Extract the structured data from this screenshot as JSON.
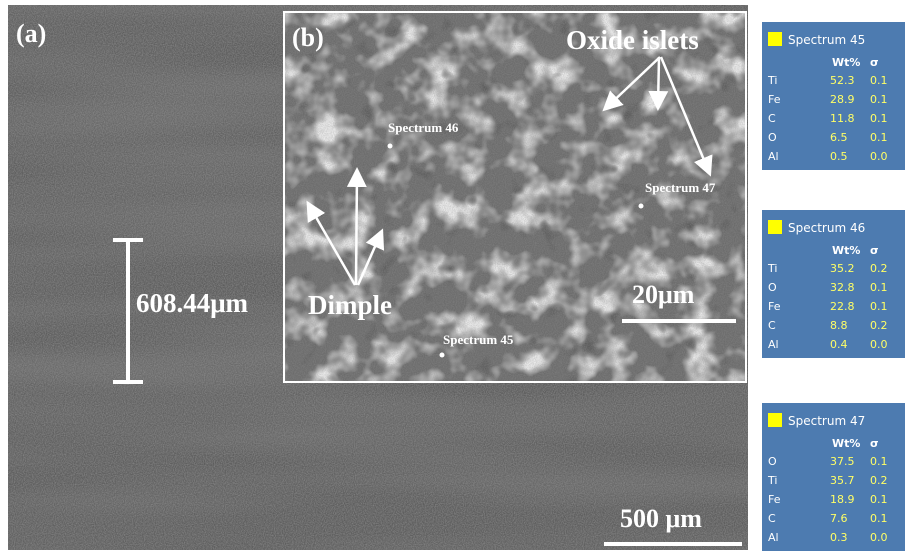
{
  "panel_a": {
    "label": "(a)",
    "measurement": "608.44μm",
    "scale_bar": "500 μm"
  },
  "panel_b": {
    "label": "(b)",
    "scale_bar": "20μm",
    "annotations": {
      "oxide": "Oxide islets",
      "dimple": "Dimple"
    },
    "points": [
      "Spectrum 46",
      "Spectrum 47",
      "Spectrum 45"
    ]
  },
  "spectra": [
    {
      "title": "Spectrum 45",
      "headers": [
        "Wt%",
        "σ"
      ],
      "rows": [
        [
          "Ti",
          "52.3",
          "0.1"
        ],
        [
          "Fe",
          "28.9",
          "0.1"
        ],
        [
          "C",
          "11.8",
          "0.1"
        ],
        [
          "O",
          "6.5",
          "0.1"
        ],
        [
          "Al",
          "0.5",
          "0.0"
        ]
      ]
    },
    {
      "title": "Spectrum 46",
      "headers": [
        "Wt%",
        "σ"
      ],
      "rows": [
        [
          "Ti",
          "35.2",
          "0.2"
        ],
        [
          "O",
          "32.8",
          "0.1"
        ],
        [
          "Fe",
          "22.8",
          "0.1"
        ],
        [
          "C",
          "8.8",
          "0.2"
        ],
        [
          "Al",
          "0.4",
          "0.0"
        ]
      ]
    },
    {
      "title": "Spectrum 47",
      "headers": [
        "Wt%",
        "σ"
      ],
      "rows": [
        [
          "O",
          "37.5",
          "0.1"
        ],
        [
          "Ti",
          "35.7",
          "0.2"
        ],
        [
          "Fe",
          "18.9",
          "0.1"
        ],
        [
          "C",
          "7.6",
          "0.1"
        ],
        [
          "Al",
          "0.3",
          "0.0"
        ]
      ]
    }
  ]
}
